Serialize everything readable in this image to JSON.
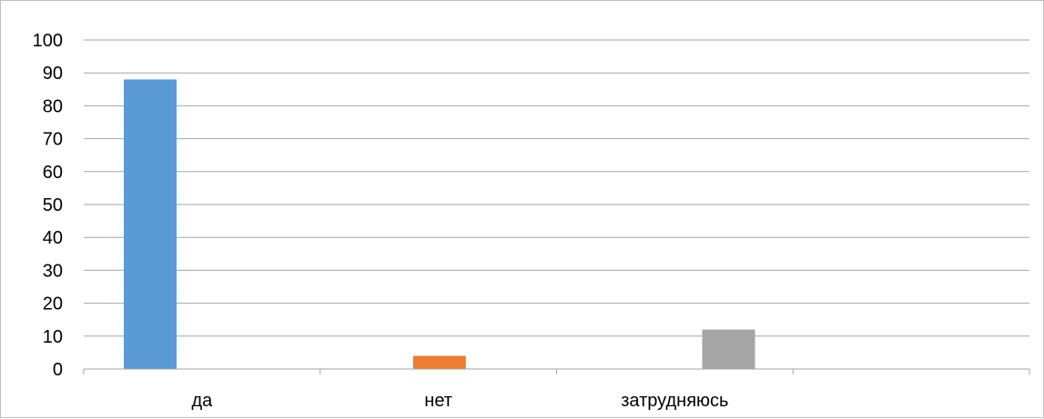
{
  "chart_data": {
    "type": "bar",
    "categories": [
      "да",
      "нет",
      "затрудняюсь",
      ""
    ],
    "series": [
      {
        "values": [
          88,
          null,
          null,
          null
        ],
        "color": "#5B9BD5"
      },
      {
        "values": [
          null,
          4,
          null,
          null
        ],
        "color": "#ED7D31"
      },
      {
        "values": [
          null,
          null,
          12,
          null
        ],
        "color": "#A5A5A5"
      }
    ],
    "yticks": [
      "0",
      "10",
      "20",
      "30",
      "40",
      "50",
      "60",
      "70",
      "80",
      "90",
      "100"
    ],
    "ylim": [
      0,
      100
    ],
    "grid": true,
    "legend": "none",
    "gridline_color": "#a6a6a6",
    "axis_color": "#a6a6a6"
  }
}
